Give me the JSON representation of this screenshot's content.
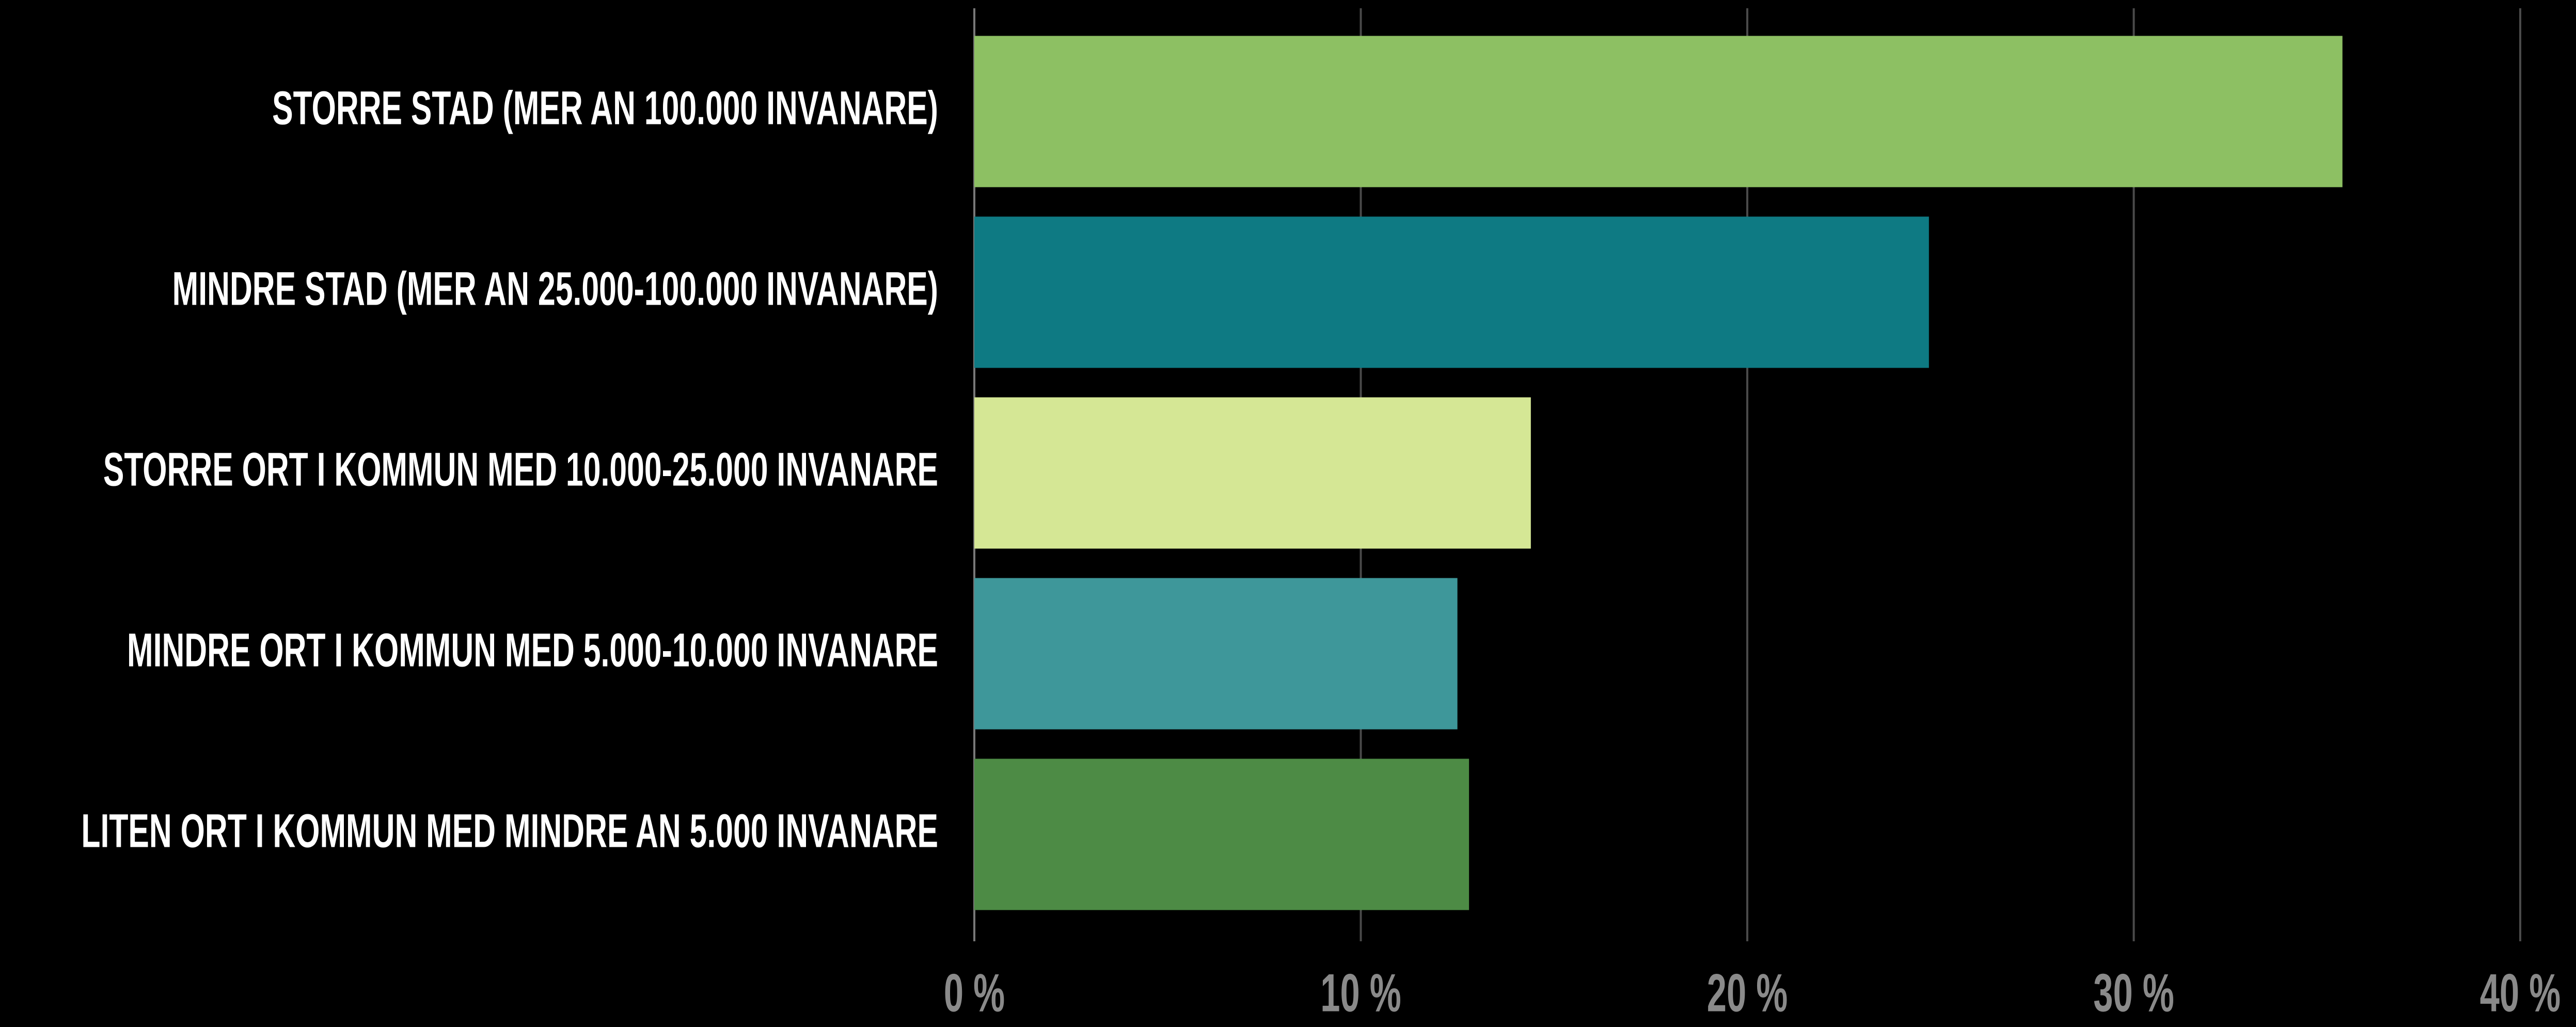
{
  "chart_data": {
    "type": "barh",
    "categories": [
      "STORRE STAD (MER AN 100.000 INVANARE)",
      "MINDRE STAD (MER AN 25.000-100.000 INVANARE)",
      "STORRE ORT I KOMMUN MED 10.000-25.000 INVANARE",
      "MINDRE ORT I KOMMUN MED 5.000-10.000 INVANARE",
      "LITEN ORT I KOMMUN MED MINDRE AN 5.000 INVANARE"
    ],
    "values": [
      35.4,
      24.7,
      14.4,
      12.5,
      12.8
    ],
    "colors": [
      "#8dc063",
      "#0e7a83",
      "#d5e795",
      "#3e979a",
      "#4d8b45"
    ],
    "xlim": [
      0,
      40
    ],
    "xticks": [
      {
        "value": 0,
        "label": "0 %"
      },
      {
        "value": 10,
        "label": "10 %"
      },
      {
        "value": 20,
        "label": "20 %"
      },
      {
        "value": 30,
        "label": "30 %"
      },
      {
        "value": 40,
        "label": "40 %"
      }
    ],
    "grid": true
  }
}
